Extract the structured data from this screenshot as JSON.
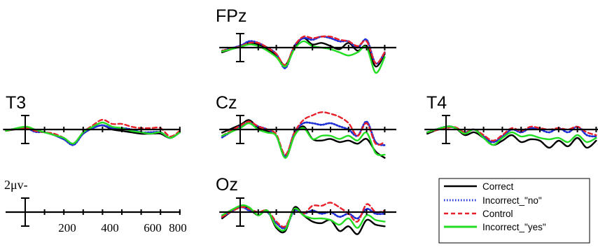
{
  "chart_data": {
    "type": "line",
    "description_units": "x in ms, y in microvolts (positive up)",
    "scale_bar_label": "2μv-",
    "x_ticks": [
      0,
      100,
      200,
      300,
      400,
      500,
      600,
      700,
      800
    ],
    "x_tick_labels": [
      "200",
      "400",
      "600",
      "800"
    ],
    "x_tick_label_values": [
      200,
      400,
      600,
      800
    ],
    "legend": [
      {
        "name": "Correct",
        "color": "#000000",
        "style": "solid"
      },
      {
        "name": "Incorrect_\"no\"",
        "color": "#1f2fd6",
        "style": "dotted"
      },
      {
        "name": "Control",
        "color": "#e8202a",
        "style": "dashed"
      },
      {
        "name": "Incorrect_\"yes\"",
        "color": "#22dd22",
        "style": "solid"
      }
    ],
    "panels": [
      {
        "electrode": "FPz",
        "x": [
          -100,
          0,
          50,
          100,
          150,
          200,
          250,
          300,
          350,
          400,
          450,
          500,
          550,
          600,
          650,
          700,
          750,
          800
        ],
        "series": [
          {
            "name": "Correct",
            "values": [
              -1.5,
              0.5,
              1.5,
              1.0,
              -0.5,
              -2.5,
              -5.5,
              0,
              3.0,
              1.0,
              1.5,
              0.5,
              -0.5,
              1.5,
              -1.0,
              0.5,
              -6.0,
              -2.0
            ]
          },
          {
            "name": "Incorrect_\"no\"",
            "values": [
              -1.0,
              0.6,
              2.0,
              1.5,
              0,
              -2.0,
              -6.5,
              0.5,
              3.0,
              2.5,
              3.5,
              3.0,
              2.0,
              2.0,
              0,
              2.5,
              -5.0,
              -1.5
            ]
          },
          {
            "name": "Control",
            "values": [
              -1.0,
              0.4,
              1.5,
              1.5,
              0,
              -2.0,
              -5.5,
              0.5,
              3.5,
              3.0,
              3.5,
              3.5,
              2.5,
              2.0,
              0.5,
              2.0,
              -5.0,
              -1.5
            ]
          },
          {
            "name": "Incorrect_\"yes\"",
            "values": [
              -1.2,
              0.2,
              1.0,
              0.5,
              -1.0,
              -3.0,
              -6.0,
              -0.5,
              2.0,
              0.5,
              0,
              -0.5,
              -1.5,
              -2.5,
              -1.5,
              0,
              -8.0,
              -3.0
            ]
          }
        ]
      },
      {
        "electrode": "Cz",
        "x": [
          -100,
          0,
          50,
          100,
          150,
          200,
          250,
          300,
          350,
          400,
          450,
          500,
          550,
          600,
          650,
          700,
          750,
          800
        ],
        "series": [
          {
            "name": "Correct",
            "values": [
              -1.0,
              1.5,
              3.0,
              0.5,
              -0.5,
              -2.0,
              -9.0,
              -2.0,
              1.0,
              -3.0,
              -3.5,
              -3.0,
              -4.0,
              -3.5,
              -4.5,
              -3.0,
              -7.0,
              -9.0
            ]
          },
          {
            "name": "Incorrect_\"no\"",
            "values": [
              -2.5,
              1.0,
              2.0,
              1.0,
              0,
              -2.0,
              -8.5,
              -1.0,
              2.0,
              2.0,
              1.5,
              2.0,
              1.0,
              0,
              -2.0,
              2.5,
              -4.0,
              -5.0
            ]
          },
          {
            "name": "Control",
            "values": [
              -2.0,
              1.2,
              2.5,
              1.0,
              0,
              -1.5,
              -8.0,
              -1.0,
              3.0,
              4.5,
              5.5,
              5.0,
              4.0,
              2.0,
              -2.0,
              2.0,
              -4.5,
              -4.0
            ]
          },
          {
            "name": "Incorrect_\"yes\"",
            "values": [
              -2.0,
              0.5,
              2.0,
              0,
              -1.0,
              -2.0,
              -9.0,
              -2.0,
              0.5,
              -3.0,
              -2.0,
              -2.0,
              -3.0,
              -2.0,
              -3.5,
              -1.0,
              -7.5,
              -8.0
            ]
          }
        ]
      },
      {
        "electrode": "Oz",
        "x": [
          -100,
          0,
          50,
          100,
          150,
          200,
          250,
          300,
          350,
          400,
          450,
          500,
          550,
          600,
          650,
          700,
          750,
          800
        ],
        "series": [
          {
            "name": "Correct",
            "values": [
              -2.0,
              2.0,
              1.0,
              -1.0,
              0.5,
              -5.0,
              -6.0,
              1.5,
              -1.0,
              -3.0,
              -3.5,
              -2.5,
              -6.0,
              -4.5,
              -7.0,
              -2.5,
              -4.0,
              -4.5
            ]
          },
          {
            "name": "Incorrect_\"no\"",
            "values": [
              -1.5,
              1.5,
              0.5,
              0,
              0,
              -3.5,
              -5.0,
              0.5,
              -0.5,
              0.5,
              -0.5,
              0,
              -1.5,
              -0.5,
              -2.0,
              1.0,
              -0.5,
              -0.5
            ]
          },
          {
            "name": "Control",
            "values": [
              -1.5,
              1.5,
              1.0,
              0,
              0.5,
              -3.0,
              -4.5,
              1.0,
              -0.5,
              2.0,
              2.0,
              3.0,
              1.5,
              -0.5,
              -3.0,
              2.5,
              0,
              0.5
            ]
          },
          {
            "name": "Incorrect_\"yes\"",
            "values": [
              -1.0,
              2.0,
              1.5,
              -1.0,
              0.5,
              -4.5,
              -5.5,
              1.0,
              -1.0,
              -2.0,
              -2.0,
              -2.5,
              -4.0,
              -2.0,
              -5.0,
              -1.0,
              -2.5,
              -3.0
            ]
          }
        ]
      },
      {
        "electrode": "T3",
        "x": [
          -100,
          0,
          50,
          100,
          150,
          200,
          250,
          300,
          350,
          400,
          450,
          500,
          550,
          600,
          650,
          700,
          750,
          800
        ],
        "series": [
          {
            "name": "Correct",
            "values": [
              -0.5,
              0.5,
              -0.5,
              -1.0,
              -2.0,
              -3.5,
              -5.0,
              -1.5,
              0.5,
              1.5,
              0,
              -0.5,
              -1.0,
              -1.5,
              -1.5,
              -1.5,
              -3.0,
              -1.0
            ]
          },
          {
            "name": "Incorrect_\"no\"",
            "values": [
              -0.3,
              0.5,
              -0.8,
              -1.0,
              -2.0,
              -3.5,
              -5.5,
              -1.5,
              0.5,
              1.5,
              0.5,
              0.5,
              0,
              -1.0,
              -1.0,
              -1.0,
              -3.0,
              -1.0
            ]
          },
          {
            "name": "Control",
            "values": [
              -0.5,
              0.5,
              -0.5,
              -1.0,
              -1.5,
              -3.0,
              -5.0,
              -1.0,
              1.5,
              3.5,
              2.0,
              2.0,
              1.0,
              0.5,
              0.5,
              0.5,
              -2.5,
              -0.5
            ]
          },
          {
            "name": "Incorrect_\"yes\"",
            "values": [
              -0.5,
              1.0,
              0,
              -1.0,
              -2.0,
              -3.0,
              -5.0,
              -1.0,
              1.0,
              2.5,
              1.0,
              0.5,
              -0.5,
              -1.0,
              -1.5,
              -1.0,
              -3.0,
              -1.0
            ]
          }
        ]
      },
      {
        "electrode": "T4",
        "x": [
          -100,
          0,
          50,
          100,
          150,
          200,
          250,
          300,
          350,
          400,
          450,
          500,
          550,
          600,
          650,
          700,
          750,
          800
        ],
        "series": [
          {
            "name": "Correct",
            "values": [
              -1.5,
              1.0,
              0.5,
              -2.0,
              -1.0,
              -3.0,
              -5.5,
              -4.0,
              -2.0,
              -4.5,
              -3.5,
              -4.0,
              -6.5,
              -4.0,
              -6.0,
              -3.0,
              -6.5,
              -4.0
            ]
          },
          {
            "name": "Incorrect_\"no\"",
            "values": [
              -1.0,
              1.0,
              0.5,
              -1.0,
              0,
              -2.5,
              -4.5,
              -2.5,
              0,
              -1.0,
              0.5,
              0,
              -1.0,
              0.5,
              -1.0,
              1.0,
              -2.0,
              -2.5
            ]
          },
          {
            "name": "Control",
            "values": [
              -1.0,
              0.5,
              0.8,
              -1.0,
              0,
              -2.0,
              -4.0,
              -2.0,
              0.5,
              -0.5,
              1.0,
              0.5,
              0,
              0.5,
              0,
              1.0,
              -1.0,
              -2.0
            ]
          },
          {
            "name": "Incorrect_\"yes\"",
            "values": [
              -1.0,
              1.0,
              0.5,
              -1.5,
              0,
              -3.0,
              -5.5,
              -3.0,
              -1.0,
              -2.5,
              -2.0,
              -3.0,
              -3.5,
              -3.0,
              -4.5,
              -2.0,
              -4.5,
              -3.0
            ]
          }
        ]
      }
    ]
  }
}
